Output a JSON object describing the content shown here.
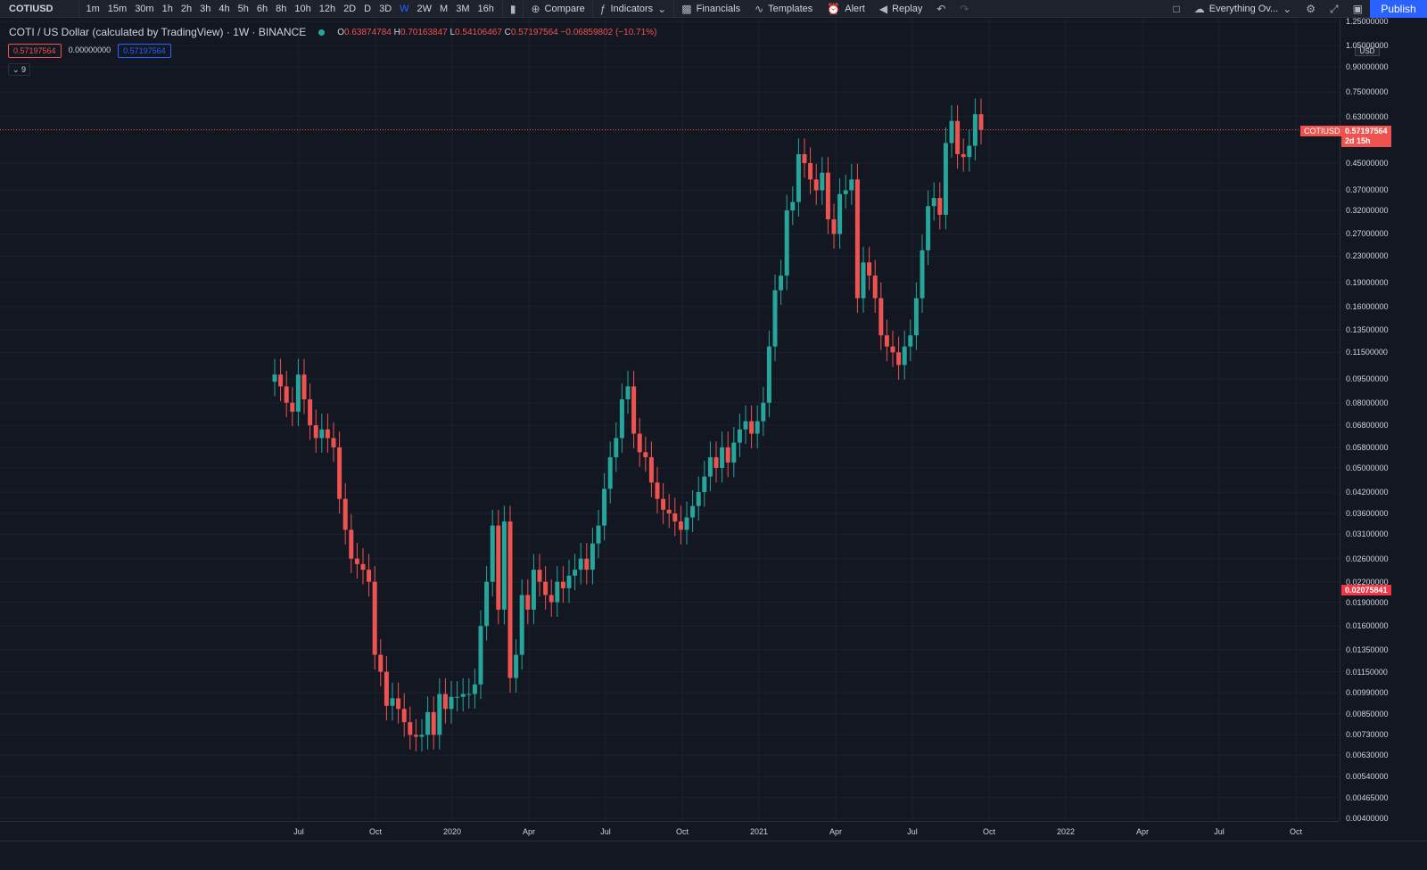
{
  "toolbar": {
    "symbol": "COTIUSD",
    "intervals": [
      "1m",
      "15m",
      "30m",
      "1h",
      "2h",
      "3h",
      "4h",
      "5h",
      "6h",
      "8h",
      "10h",
      "12h",
      "2D",
      "D",
      "3D",
      "W",
      "2W",
      "M",
      "3M",
      "16h"
    ],
    "active_interval": "W",
    "compare": "Compare",
    "indicators": "Indicators",
    "financials": "Financials",
    "templates": "Templates",
    "alert": "Alert",
    "replay": "Replay",
    "layout_name": "Everything Ov...",
    "publish": "Publish"
  },
  "legend": {
    "title": "COTI / US Dollar (calculated by TradingView) · 1W · BINANCE",
    "o_label": "O",
    "o": "0.63874784",
    "h_label": "H",
    "h": "0.70163847",
    "l_label": "L",
    "l": "0.54106467",
    "c_label": "C",
    "c": "0.57197564",
    "change": "−0.06859802 (−10.71%)",
    "bid": "0.57197564",
    "spread": "0.00000000",
    "ask": "0.57197564",
    "indicator_count": "9"
  },
  "price_scale": {
    "currency": "USD",
    "current_symbol_tag": "COTIUSD",
    "current_price": "0.57197564",
    "countdown": "2d 15h",
    "crosshair_price": "0.02075841"
  },
  "colors": {
    "up": "#26a69a",
    "down": "#ef5350",
    "background": "#131722",
    "grid": "#1c2030"
  },
  "chart_data": {
    "type": "candlestick",
    "title": "COTI / US Dollar (calculated by TradingView) · 1W · BINANCE",
    "scale": "log",
    "ylim": [
      0.004,
      1.25
    ],
    "y_ticks": [
      "1.25000000",
      "1.05000000",
      "0.90000000",
      "0.75000000",
      "0.63000000",
      "0.45000000",
      "0.37000000",
      "0.32000000",
      "0.27000000",
      "0.23000000",
      "0.19000000",
      "0.16000000",
      "0.13500000",
      "0.11500000",
      "0.09500000",
      "0.08000000",
      "0.06800000",
      "0.05800000",
      "0.05000000",
      "0.04200000",
      "0.03600000",
      "0.03100000",
      "0.02600000",
      "0.02200000",
      "0.01900000",
      "0.01600000",
      "0.01350000",
      "0.01150000",
      "0.00990000",
      "0.00850000",
      "0.00730000",
      "0.00630000",
      "0.00540000",
      "0.00465000",
      "0.00400000"
    ],
    "x_ticks": [
      "Jul",
      "Oct",
      "2020",
      "Apr",
      "Jul",
      "Oct",
      "2021",
      "Apr",
      "Jul",
      "Oct",
      "2022",
      "Apr",
      "Jul",
      "Oct"
    ],
    "series_close": [
      0.098,
      0.09,
      0.08,
      0.075,
      0.098,
      0.082,
      0.068,
      0.062,
      0.066,
      0.062,
      0.058,
      0.04,
      0.032,
      0.026,
      0.025,
      0.024,
      0.022,
      0.013,
      0.0115,
      0.009,
      0.0095,
      0.0088,
      0.008,
      0.0073,
      0.0072,
      0.0073,
      0.0086,
      0.0073,
      0.0098,
      0.0088,
      0.0096,
      0.0096,
      0.0098,
      0.0098,
      0.0105,
      0.016,
      0.022,
      0.033,
      0.018,
      0.034,
      0.011,
      0.013,
      0.02,
      0.018,
      0.024,
      0.022,
      0.02,
      0.019,
      0.022,
      0.021,
      0.023,
      0.024,
      0.026,
      0.024,
      0.029,
      0.033,
      0.043,
      0.054,
      0.062,
      0.082,
      0.09,
      0.064,
      0.056,
      0.054,
      0.045,
      0.04,
      0.037,
      0.036,
      0.034,
      0.032,
      0.035,
      0.038,
      0.042,
      0.047,
      0.054,
      0.05,
      0.058,
      0.052,
      0.06,
      0.066,
      0.07,
      0.064,
      0.07,
      0.08,
      0.12,
      0.18,
      0.2,
      0.32,
      0.34,
      0.48,
      0.45,
      0.4,
      0.37,
      0.42,
      0.3,
      0.27,
      0.36,
      0.37,
      0.4,
      0.17,
      0.22,
      0.2,
      0.17,
      0.13,
      0.12,
      0.115,
      0.105,
      0.12,
      0.13,
      0.17,
      0.24,
      0.33,
      0.35,
      0.31,
      0.52,
      0.61,
      0.48,
      0.47,
      0.51,
      0.64,
      0.572
    ]
  }
}
